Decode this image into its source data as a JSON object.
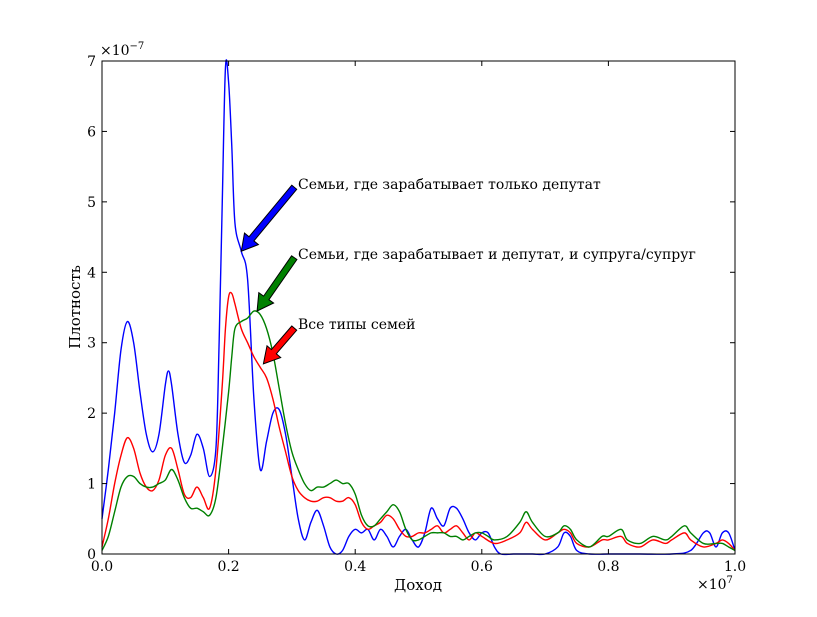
{
  "chart_data": {
    "type": "line",
    "title": "",
    "xlabel": "Доход",
    "ylabel": "Плотность",
    "x_multiplier_label": "×10^7",
    "y_multiplier_label": "×10^-7",
    "xlim": [
      0.0,
      1.0
    ],
    "ylim": [
      0,
      7
    ],
    "x_ticks": [
      "0.0",
      "0.2",
      "0.4",
      "0.6",
      "0.8",
      "1.0"
    ],
    "y_ticks": [
      "0",
      "1",
      "2",
      "3",
      "4",
      "5",
      "6",
      "7"
    ],
    "grid": false,
    "series": [
      {
        "color": "#0000ff",
        "points": [
          [
            0.0,
            0.5
          ],
          [
            0.01,
            1.2
          ],
          [
            0.02,
            2.0
          ],
          [
            0.03,
            2.9
          ],
          [
            0.04,
            3.3
          ],
          [
            0.05,
            3.0
          ],
          [
            0.06,
            2.3
          ],
          [
            0.07,
            1.7
          ],
          [
            0.08,
            1.45
          ],
          [
            0.09,
            1.7
          ],
          [
            0.1,
            2.4
          ],
          [
            0.105,
            2.6
          ],
          [
            0.11,
            2.4
          ],
          [
            0.12,
            1.7
          ],
          [
            0.13,
            1.3
          ],
          [
            0.14,
            1.4
          ],
          [
            0.15,
            1.7
          ],
          [
            0.16,
            1.5
          ],
          [
            0.17,
            1.1
          ],
          [
            0.18,
            1.5
          ],
          [
            0.185,
            3.0
          ],
          [
            0.19,
            5.0
          ],
          [
            0.195,
            6.9
          ],
          [
            0.2,
            6.7
          ],
          [
            0.205,
            5.8
          ],
          [
            0.21,
            4.7
          ],
          [
            0.22,
            4.3
          ],
          [
            0.23,
            3.9
          ],
          [
            0.24,
            2.2
          ],
          [
            0.25,
            1.2
          ],
          [
            0.26,
            1.6
          ],
          [
            0.27,
            2.0
          ],
          [
            0.28,
            2.05
          ],
          [
            0.29,
            1.7
          ],
          [
            0.3,
            1.1
          ],
          [
            0.31,
            0.5
          ],
          [
            0.32,
            0.2
          ],
          [
            0.33,
            0.45
          ],
          [
            0.34,
            0.62
          ],
          [
            0.35,
            0.4
          ],
          [
            0.36,
            0.1
          ],
          [
            0.37,
            0.0
          ],
          [
            0.38,
            0.05
          ],
          [
            0.39,
            0.25
          ],
          [
            0.4,
            0.35
          ],
          [
            0.41,
            0.3
          ],
          [
            0.42,
            0.35
          ],
          [
            0.43,
            0.2
          ],
          [
            0.44,
            0.35
          ],
          [
            0.45,
            0.25
          ],
          [
            0.46,
            0.1
          ],
          [
            0.47,
            0.25
          ],
          [
            0.48,
            0.35
          ],
          [
            0.49,
            0.2
          ],
          [
            0.5,
            0.1
          ],
          [
            0.51,
            0.3
          ],
          [
            0.52,
            0.65
          ],
          [
            0.53,
            0.5
          ],
          [
            0.54,
            0.4
          ],
          [
            0.55,
            0.65
          ],
          [
            0.56,
            0.65
          ],
          [
            0.57,
            0.5
          ],
          [
            0.58,
            0.3
          ],
          [
            0.59,
            0.2
          ],
          [
            0.6,
            0.3
          ],
          [
            0.61,
            0.3
          ],
          [
            0.62,
            0.1
          ],
          [
            0.63,
            0.0
          ],
          [
            0.65,
            0.0
          ],
          [
            0.68,
            0.0
          ],
          [
            0.7,
            0.0
          ],
          [
            0.72,
            0.1
          ],
          [
            0.73,
            0.3
          ],
          [
            0.74,
            0.25
          ],
          [
            0.75,
            0.05
          ],
          [
            0.77,
            0.0
          ],
          [
            0.8,
            0.0
          ],
          [
            0.85,
            0.0
          ],
          [
            0.9,
            0.0
          ],
          [
            0.93,
            0.05
          ],
          [
            0.95,
            0.3
          ],
          [
            0.96,
            0.3
          ],
          [
            0.97,
            0.1
          ],
          [
            0.98,
            0.3
          ],
          [
            0.99,
            0.3
          ],
          [
            1.0,
            0.05
          ]
        ]
      },
      {
        "color": "#ff0000",
        "points": [
          [
            0.0,
            0.1
          ],
          [
            0.01,
            0.5
          ],
          [
            0.02,
            1.0
          ],
          [
            0.03,
            1.4
          ],
          [
            0.04,
            1.65
          ],
          [
            0.05,
            1.5
          ],
          [
            0.06,
            1.15
          ],
          [
            0.07,
            0.95
          ],
          [
            0.08,
            0.9
          ],
          [
            0.09,
            1.05
          ],
          [
            0.1,
            1.4
          ],
          [
            0.11,
            1.5
          ],
          [
            0.12,
            1.2
          ],
          [
            0.13,
            0.85
          ],
          [
            0.14,
            0.8
          ],
          [
            0.15,
            0.95
          ],
          [
            0.16,
            0.8
          ],
          [
            0.17,
            0.65
          ],
          [
            0.18,
            1.2
          ],
          [
            0.19,
            2.4
          ],
          [
            0.195,
            3.2
          ],
          [
            0.2,
            3.65
          ],
          [
            0.205,
            3.7
          ],
          [
            0.21,
            3.55
          ],
          [
            0.22,
            3.2
          ],
          [
            0.23,
            3.0
          ],
          [
            0.24,
            2.8
          ],
          [
            0.25,
            2.65
          ],
          [
            0.26,
            2.5
          ],
          [
            0.27,
            2.2
          ],
          [
            0.28,
            1.8
          ],
          [
            0.29,
            1.45
          ],
          [
            0.3,
            1.1
          ],
          [
            0.31,
            0.9
          ],
          [
            0.32,
            0.8
          ],
          [
            0.33,
            0.75
          ],
          [
            0.34,
            0.75
          ],
          [
            0.35,
            0.8
          ],
          [
            0.36,
            0.8
          ],
          [
            0.37,
            0.75
          ],
          [
            0.38,
            0.75
          ],
          [
            0.39,
            0.8
          ],
          [
            0.4,
            0.7
          ],
          [
            0.41,
            0.45
          ],
          [
            0.42,
            0.35
          ],
          [
            0.43,
            0.4
          ],
          [
            0.44,
            0.45
          ],
          [
            0.45,
            0.55
          ],
          [
            0.46,
            0.5
          ],
          [
            0.47,
            0.35
          ],
          [
            0.48,
            0.25
          ],
          [
            0.49,
            0.25
          ],
          [
            0.5,
            0.3
          ],
          [
            0.51,
            0.3
          ],
          [
            0.52,
            0.35
          ],
          [
            0.53,
            0.4
          ],
          [
            0.54,
            0.3
          ],
          [
            0.55,
            0.35
          ],
          [
            0.56,
            0.4
          ],
          [
            0.57,
            0.3
          ],
          [
            0.58,
            0.2
          ],
          [
            0.59,
            0.3
          ],
          [
            0.6,
            0.25
          ],
          [
            0.62,
            0.15
          ],
          [
            0.64,
            0.2
          ],
          [
            0.66,
            0.3
          ],
          [
            0.67,
            0.45
          ],
          [
            0.68,
            0.35
          ],
          [
            0.7,
            0.2
          ],
          [
            0.72,
            0.3
          ],
          [
            0.73,
            0.35
          ],
          [
            0.74,
            0.3
          ],
          [
            0.75,
            0.15
          ],
          [
            0.77,
            0.1
          ],
          [
            0.79,
            0.2
          ],
          [
            0.8,
            0.2
          ],
          [
            0.82,
            0.25
          ],
          [
            0.83,
            0.15
          ],
          [
            0.85,
            0.1
          ],
          [
            0.87,
            0.2
          ],
          [
            0.89,
            0.15
          ],
          [
            0.9,
            0.2
          ],
          [
            0.92,
            0.3
          ],
          [
            0.93,
            0.2
          ],
          [
            0.95,
            0.1
          ],
          [
            0.97,
            0.15
          ],
          [
            0.98,
            0.2
          ],
          [
            0.99,
            0.15
          ],
          [
            1.0,
            0.05
          ]
        ]
      },
      {
        "color": "#008000",
        "points": [
          [
            0.0,
            0.05
          ],
          [
            0.01,
            0.25
          ],
          [
            0.02,
            0.6
          ],
          [
            0.03,
            0.95
          ],
          [
            0.04,
            1.1
          ],
          [
            0.05,
            1.1
          ],
          [
            0.06,
            1.0
          ],
          [
            0.07,
            0.95
          ],
          [
            0.08,
            0.95
          ],
          [
            0.09,
            1.0
          ],
          [
            0.1,
            1.05
          ],
          [
            0.11,
            1.2
          ],
          [
            0.12,
            1.05
          ],
          [
            0.13,
            0.8
          ],
          [
            0.14,
            0.65
          ],
          [
            0.15,
            0.65
          ],
          [
            0.16,
            0.6
          ],
          [
            0.17,
            0.55
          ],
          [
            0.18,
            0.8
          ],
          [
            0.19,
            1.5
          ],
          [
            0.2,
            2.3
          ],
          [
            0.205,
            2.8
          ],
          [
            0.21,
            3.2
          ],
          [
            0.22,
            3.3
          ],
          [
            0.23,
            3.35
          ],
          [
            0.24,
            3.45
          ],
          [
            0.25,
            3.4
          ],
          [
            0.26,
            3.2
          ],
          [
            0.27,
            2.85
          ],
          [
            0.28,
            2.35
          ],
          [
            0.29,
            1.85
          ],
          [
            0.3,
            1.45
          ],
          [
            0.31,
            1.2
          ],
          [
            0.32,
            1.0
          ],
          [
            0.33,
            0.9
          ],
          [
            0.34,
            0.95
          ],
          [
            0.35,
            0.95
          ],
          [
            0.36,
            1.0
          ],
          [
            0.37,
            1.05
          ],
          [
            0.38,
            1.0
          ],
          [
            0.39,
            1.0
          ],
          [
            0.4,
            0.85
          ],
          [
            0.41,
            0.55
          ],
          [
            0.42,
            0.4
          ],
          [
            0.43,
            0.4
          ],
          [
            0.44,
            0.5
          ],
          [
            0.45,
            0.6
          ],
          [
            0.46,
            0.7
          ],
          [
            0.47,
            0.6
          ],
          [
            0.48,
            0.35
          ],
          [
            0.49,
            0.2
          ],
          [
            0.5,
            0.2
          ],
          [
            0.51,
            0.25
          ],
          [
            0.52,
            0.3
          ],
          [
            0.53,
            0.3
          ],
          [
            0.54,
            0.3
          ],
          [
            0.55,
            0.25
          ],
          [
            0.56,
            0.25
          ],
          [
            0.57,
            0.2
          ],
          [
            0.58,
            0.25
          ],
          [
            0.59,
            0.3
          ],
          [
            0.6,
            0.3
          ],
          [
            0.61,
            0.25
          ],
          [
            0.62,
            0.2
          ],
          [
            0.64,
            0.25
          ],
          [
            0.66,
            0.45
          ],
          [
            0.67,
            0.6
          ],
          [
            0.68,
            0.45
          ],
          [
            0.7,
            0.25
          ],
          [
            0.72,
            0.3
          ],
          [
            0.73,
            0.4
          ],
          [
            0.74,
            0.35
          ],
          [
            0.75,
            0.2
          ],
          [
            0.77,
            0.1
          ],
          [
            0.79,
            0.25
          ],
          [
            0.8,
            0.25
          ],
          [
            0.82,
            0.35
          ],
          [
            0.83,
            0.2
          ],
          [
            0.85,
            0.15
          ],
          [
            0.87,
            0.25
          ],
          [
            0.89,
            0.2
          ],
          [
            0.9,
            0.25
          ],
          [
            0.92,
            0.4
          ],
          [
            0.93,
            0.3
          ],
          [
            0.95,
            0.15
          ],
          [
            0.97,
            0.15
          ],
          [
            0.98,
            0.15
          ],
          [
            0.99,
            0.1
          ],
          [
            1.0,
            0.05
          ]
        ]
      }
    ],
    "annotations": [
      {
        "text": "Семьи, где зарабатывает только депутат",
        "color": "#0000ff",
        "text_x": 0.31,
        "text_y": 5.25,
        "tip_x": 0.22,
        "tip_y": 4.3
      },
      {
        "text": "Семьи, где зарабатывает и депутат, и супруга/супруг",
        "color": "#008000",
        "text_x": 0.31,
        "text_y": 4.25,
        "tip_x": 0.245,
        "tip_y": 3.45
      },
      {
        "text": "Все типы семей",
        "color": "#ff0000",
        "text_x": 0.31,
        "text_y": 3.25,
        "tip_x": 0.255,
        "tip_y": 2.7
      }
    ]
  }
}
